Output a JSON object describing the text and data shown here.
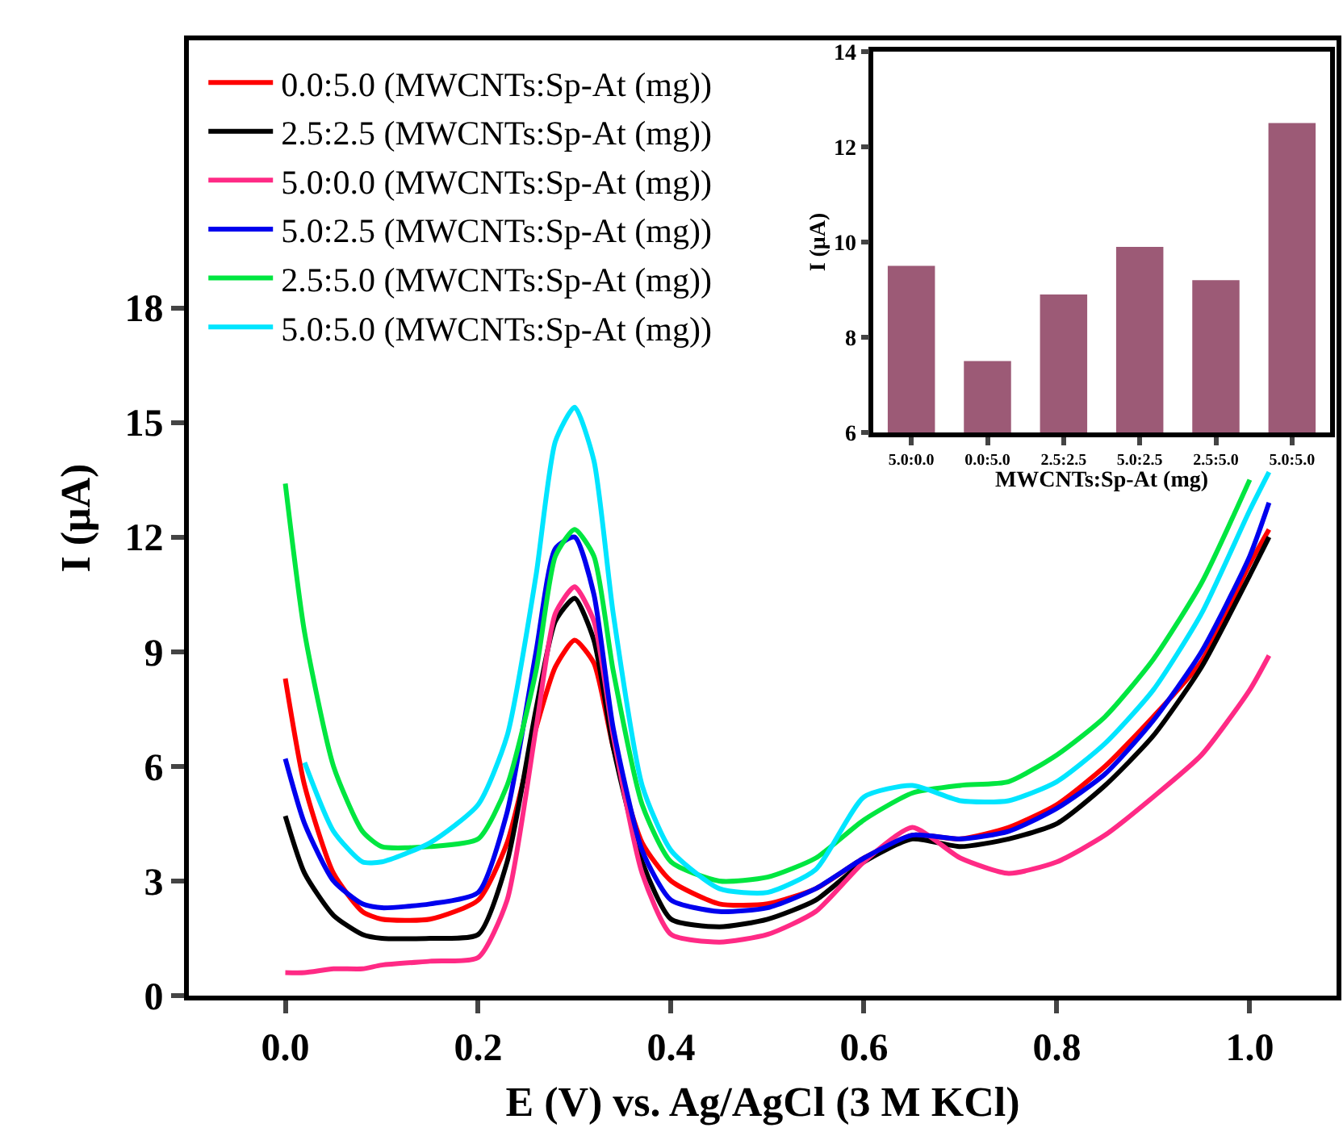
{
  "chart_data": [
    {
      "type": "line",
      "xlabel": "E (V) vs. Ag/AgCl (3 M KCl)",
      "ylabel": "I (μA)",
      "x": [
        0,
        0.02,
        0.05,
        0.08,
        0.1,
        0.15,
        0.2,
        0.23,
        0.26,
        0.28,
        0.3,
        0.32,
        0.34,
        0.37,
        0.4,
        0.45,
        0.5,
        0.55,
        0.6,
        0.65,
        0.7,
        0.75,
        0.8,
        0.85,
        0.9,
        0.95,
        1.0,
        1.02
      ],
      "series": [
        {
          "name": "0.0:5.0 (MWCNTs:Sp-At (mg))",
          "color": "#ff0000",
          "values": [
            8.3,
            5.5,
            3.2,
            2.2,
            2.0,
            2.0,
            2.5,
            4.0,
            7.0,
            8.6,
            9.3,
            8.7,
            6.5,
            4.0,
            3.0,
            2.4,
            2.4,
            2.8,
            3.6,
            4.2,
            4.1,
            4.4,
            5.0,
            6.0,
            7.3,
            8.75,
            11.3,
            12.2
          ]
        },
        {
          "name": "2.5:2.5 (MWCNTs:Sp-At (mg))",
          "color": "#000000",
          "values": [
            4.7,
            3.2,
            2.1,
            1.6,
            1.5,
            1.5,
            1.6,
            3.5,
            7.5,
            9.8,
            10.4,
            9.3,
            6.5,
            3.5,
            2.0,
            1.8,
            2.0,
            2.5,
            3.5,
            4.1,
            3.9,
            4.1,
            4.5,
            5.5,
            6.8,
            8.6,
            11.0,
            12.0
          ]
        },
        {
          "name": "5.0:0.0 (MWCNTs:Sp-At (mg))",
          "color": "#ff2a85",
          "values": [
            0.6,
            0.6,
            0.7,
            0.7,
            0.8,
            0.9,
            1.0,
            2.5,
            7.0,
            10.0,
            10.7,
            9.8,
            6.8,
            3.2,
            1.6,
            1.4,
            1.6,
            2.2,
            3.5,
            4.4,
            3.6,
            3.2,
            3.5,
            4.2,
            5.2,
            6.3,
            8.0,
            8.9
          ]
        },
        {
          "name": "5.0:2.5 (MWCNTs:Sp-At (mg))",
          "color": "#0000ee",
          "values": [
            6.2,
            4.5,
            3.0,
            2.4,
            2.3,
            2.4,
            2.7,
            4.8,
            9.0,
            11.7,
            12.0,
            10.5,
            7.0,
            3.8,
            2.5,
            2.2,
            2.3,
            2.8,
            3.6,
            4.2,
            4.1,
            4.3,
            4.9,
            5.8,
            7.2,
            9.0,
            11.5,
            12.9
          ]
        },
        {
          "name": "2.5:5.0 (MWCNTs:Sp-At (mg))",
          "color": "#00e640",
          "values": [
            13.4,
            9.5,
            6.0,
            4.3,
            3.9,
            3.9,
            4.1,
            5.5,
            8.5,
            11.5,
            12.2,
            11.5,
            8.5,
            5.0,
            3.5,
            3.0,
            3.1,
            3.6,
            4.6,
            5.3,
            5.5,
            5.6,
            6.3,
            7.3,
            8.8,
            10.8,
            13.5,
            null
          ]
        },
        {
          "name": "5.0:5.0 (MWCNTs:Sp-At (mg))",
          "color": "#00e5ff",
          "values": [
            null,
            6.1,
            4.3,
            3.5,
            3.5,
            4.0,
            5.0,
            6.8,
            11.0,
            14.5,
            15.4,
            14.0,
            10.0,
            5.5,
            3.8,
            2.8,
            2.7,
            3.3,
            5.2,
            5.5,
            5.1,
            5.1,
            5.6,
            6.6,
            8.0,
            10.0,
            12.7,
            13.7
          ]
        }
      ],
      "xlim": [
        -0.1,
        1.09
      ],
      "xticks": [
        {
          "value": 0,
          "label": "0.0"
        },
        {
          "value": 0.2,
          "label": "0.2"
        },
        {
          "value": 0.4,
          "label": "0.4"
        },
        {
          "value": 0.6,
          "label": "0.6"
        },
        {
          "value": 0.8,
          "label": "0.8"
        },
        {
          "value": 1.0,
          "label": "1.0"
        }
      ],
      "ylim": [
        0,
        25
      ],
      "yticks": [
        0,
        3,
        6,
        9,
        12,
        15,
        18
      ],
      "legend": "top left",
      "grid": false,
      "marker": "none",
      "line_style": "solid"
    },
    {
      "type": "bar",
      "xlabel": "MWCNTs:Sp-At (mg)",
      "ylabel": "I (μA)",
      "categories": [
        "5.0:0.0",
        "0.0:5.0",
        "2.5:2.5",
        "5.0:2.5",
        "2.5:5.0",
        "5.0:5.0"
      ],
      "values": [
        9.5,
        7.5,
        8.9,
        9.9,
        9.2,
        12.5
      ],
      "color": "#9c5a76",
      "ylim": [
        6,
        14
      ],
      "yticks": [
        6,
        8,
        10,
        12,
        14
      ],
      "grid": false,
      "legend": false
    }
  ]
}
